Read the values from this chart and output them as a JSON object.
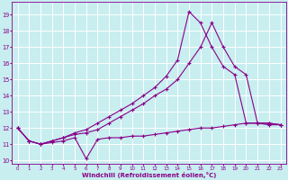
{
  "xlabel": "Windchill (Refroidissement éolien,°C)",
  "bg_color": "#c8eef0",
  "line_color": "#880088",
  "xlim": [
    -0.5,
    23.5
  ],
  "ylim": [
    9.8,
    19.8
  ],
  "yticks": [
    10,
    11,
    12,
    13,
    14,
    15,
    16,
    17,
    18,
    19
  ],
  "xticks": [
    0,
    1,
    2,
    3,
    4,
    5,
    6,
    7,
    8,
    9,
    10,
    11,
    12,
    13,
    14,
    15,
    16,
    17,
    18,
    19,
    20,
    21,
    22,
    23
  ],
  "line1_x": [
    0,
    1,
    2,
    3,
    4,
    5,
    6,
    7,
    8,
    9,
    10,
    11,
    12,
    13,
    14,
    15,
    16,
    17,
    18,
    19,
    20,
    21,
    22,
    23
  ],
  "line1_y": [
    12.0,
    11.2,
    11.0,
    11.1,
    11.2,
    11.4,
    10.1,
    11.3,
    11.4,
    11.4,
    11.5,
    11.5,
    11.6,
    11.7,
    11.8,
    11.9,
    12.0,
    12.0,
    12.1,
    12.2,
    12.3,
    12.3,
    12.2,
    12.2
  ],
  "line2_x": [
    0,
    1,
    2,
    3,
    4,
    5,
    6,
    7,
    8,
    9,
    10,
    11,
    12,
    13,
    14,
    15,
    16,
    17,
    18,
    19,
    20,
    21,
    22,
    23
  ],
  "line2_y": [
    12.0,
    11.2,
    11.0,
    11.2,
    11.4,
    11.6,
    11.7,
    11.9,
    12.3,
    12.7,
    13.1,
    13.5,
    14.0,
    14.4,
    15.0,
    16.0,
    17.0,
    18.5,
    17.0,
    15.8,
    15.3,
    12.3,
    12.3,
    12.2
  ],
  "line3_x": [
    0,
    1,
    2,
    3,
    4,
    5,
    6,
    7,
    8,
    9,
    10,
    11,
    12,
    13,
    14,
    15,
    16,
    17,
    18,
    19,
    20,
    21,
    22,
    23
  ],
  "line3_y": [
    12.0,
    11.2,
    11.0,
    11.2,
    11.4,
    11.7,
    11.9,
    12.3,
    12.7,
    13.1,
    13.5,
    14.0,
    14.5,
    15.2,
    16.2,
    19.2,
    18.5,
    17.0,
    15.8,
    15.3,
    12.3,
    12.3,
    12.3,
    12.2
  ]
}
